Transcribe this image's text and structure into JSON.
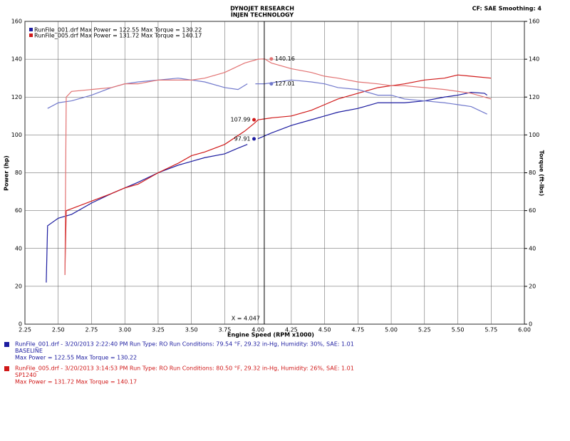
{
  "chart_data": {
    "type": "line",
    "title": "DYNOJET RESEARCH",
    "subtitle": "İNJEN TECHNOLOGY",
    "settings_label": "CF: SAE  Smoothing: 4",
    "x_label": "Engine Speed (RPM x1000)",
    "y_label": "Power (hp)",
    "y2_label": "Torque (ft-lbs)",
    "xlim": [
      2.25,
      6.0
    ],
    "ylim": [
      0,
      160
    ],
    "y2lim": [
      0,
      160
    ],
    "xticks": [
      2.25,
      {
        "value": 2.5,
        "label": "2.50"
      },
      2.75,
      {
        "value": 3.0,
        "label": "3.00"
      },
      3.25,
      {
        "value": 3.5,
        "label": "3.50"
      },
      3.75,
      {
        "value": 4.0,
        "label": "4.00"
      },
      4.25,
      {
        "value": 4.5,
        "label": "4.50"
      },
      4.75,
      {
        "value": 5.0,
        "label": "5.00"
      },
      5.25,
      {
        "value": 5.5,
        "label": "5.50"
      },
      5.75,
      {
        "value": 6.0,
        "label": "6.00"
      }
    ],
    "yticks": [
      0,
      20,
      40,
      60,
      80,
      100,
      120,
      140,
      160
    ],
    "y2ticks": [
      0,
      20,
      40,
      60,
      80,
      100,
      120,
      140,
      160
    ],
    "grid": true,
    "legend": [
      "RunFile_001.drf Max Power = 122.55    Max Torque = 130.22",
      "RunFile_005.drf Max Power = 131.72    Max Torque = 140.17"
    ],
    "legend_colors": [
      "#1c1ca0",
      "#d01818"
    ],
    "series": [
      {
        "color": "#1c1ca0",
        "axis": "y",
        "x": [
          2.41,
          2.42,
          2.5,
          2.6,
          2.75,
          2.9,
          3.0,
          3.1,
          3.25,
          3.4,
          3.5,
          3.6,
          3.75,
          3.85,
          3.92,
          3.96,
          4.0,
          4.1,
          4.25,
          4.4,
          4.5,
          4.6,
          4.75,
          4.9,
          5.0,
          5.1,
          5.25,
          5.4,
          5.5,
          5.6,
          5.7,
          5.72
        ],
        "values": [
          22,
          52,
          56,
          58,
          64,
          69,
          72,
          75,
          80,
          84,
          86,
          88,
          90,
          93,
          95,
          null,
          98,
          101,
          105,
          108,
          110,
          112,
          114,
          117,
          117,
          117,
          118,
          120,
          121,
          122.5,
          122,
          121
        ]
      },
      {
        "color": "#d01818",
        "axis": "y",
        "x": [
          2.55,
          2.56,
          2.6,
          2.75,
          2.9,
          3.0,
          3.1,
          3.25,
          3.4,
          3.5,
          3.6,
          3.75,
          3.9,
          3.97,
          4.0,
          4.1,
          4.25,
          4.4,
          4.5,
          4.6,
          4.75,
          4.9,
          5.0,
          5.1,
          5.25,
          5.4,
          5.5,
          5.6,
          5.75
        ],
        "values": [
          26,
          60,
          61,
          65,
          69,
          72,
          74,
          80,
          85,
          89,
          91,
          95,
          102,
          106,
          108,
          109,
          110,
          113,
          116,
          119,
          122,
          125,
          126,
          127,
          129,
          130,
          131.7,
          131,
          130
        ]
      },
      {
        "color": "#7078cc",
        "axis": "y2",
        "x": [
          2.42,
          2.5,
          2.6,
          2.75,
          2.9,
          3.0,
          3.1,
          3.25,
          3.4,
          3.5,
          3.6,
          3.75,
          3.85,
          3.92,
          3.96,
          3.98,
          4.05,
          4.25,
          4.4,
          4.5,
          4.6,
          4.75,
          4.9,
          5.0,
          5.1,
          5.25,
          5.4,
          5.5,
          5.6,
          5.72
        ],
        "values": [
          114,
          117,
          118,
          121,
          125,
          127,
          128,
          129,
          130,
          129,
          128,
          125,
          124,
          127,
          null,
          127,
          127.01,
          129,
          128,
          127,
          125,
          124,
          121,
          121,
          119,
          118,
          117,
          116,
          115,
          111
        ]
      },
      {
        "color": "#e27272",
        "axis": "y2",
        "x": [
          2.55,
          2.56,
          2.6,
          2.75,
          2.9,
          3.0,
          3.1,
          3.25,
          3.4,
          3.5,
          3.6,
          3.75,
          3.9,
          4.0,
          4.05,
          4.1,
          4.25,
          4.4,
          4.5,
          4.6,
          4.75,
          4.9,
          5.0,
          5.1,
          5.25,
          5.4,
          5.5,
          5.6,
          5.75
        ],
        "values": [
          26,
          120,
          123,
          124,
          125,
          127,
          127,
          129,
          129,
          129,
          130,
          133,
          138,
          140,
          140.16,
          138,
          135,
          133,
          131,
          130,
          128,
          127,
          126,
          126,
          125,
          124,
          123,
          122,
          119
        ]
      }
    ],
    "annotations": [
      {
        "x": 4.1,
        "value": 140.16,
        "axis": "y2",
        "color": "#e27272",
        "side": "right"
      },
      {
        "x": 4.1,
        "value": 127.01,
        "axis": "y2",
        "color": "#7078cc",
        "side": "right"
      },
      {
        "x": 3.97,
        "value": 107.99,
        "axis": "y",
        "color": "#d01818",
        "side": "left"
      },
      {
        "x": 3.97,
        "value": 97.91,
        "axis": "y",
        "color": "#1c1ca0",
        "side": "left"
      }
    ],
    "cursor": {
      "x": 4.047,
      "label": "X = 4.047"
    },
    "runs": [
      {
        "color": "#1c1ca0",
        "lines": [
          "RunFile_001.drf - 3/20/2013 2:22:40 PM  Run Type: RO  Run Conditions: 79.54 °F, 29.32 in-Hg,  Humidity:  30%, SAE: 1.01",
          "BASELINE",
          "Max Power = 122.55  Max Torque = 130.22"
        ]
      },
      {
        "color": "#d01818",
        "lines": [
          "RunFile_005.drf - 3/20/2013 3:14:53 PM  Run Type: RO  Run Conditions: 80.50 °F, 29.32 in-Hg,  Humidity:  26%, SAE: 1.01",
          "SP1240",
          "Max Power = 131.72  Max Torque = 140.17"
        ]
      }
    ]
  }
}
